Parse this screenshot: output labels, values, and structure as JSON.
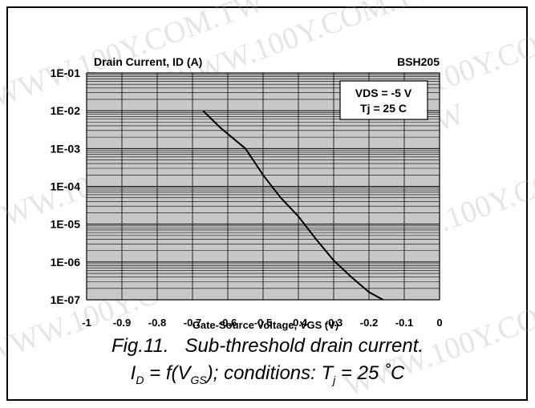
{
  "watermark": "WWW.100Y.COM.TW",
  "caption": {
    "fig_label": "Fig.11.",
    "fig_title": "Sub-threshold drain current.",
    "formula_I": "I",
    "formula_D": "D",
    "formula_mid": " = f(V",
    "formula_GS": "GS",
    "formula_cond": "); conditions: T",
    "formula_j": "j",
    "formula_end": " = 25 ˚C"
  },
  "chart_data": {
    "type": "line",
    "title": "Drain Current, ID (A)",
    "part_number": "BSH205",
    "xlabel": "Gate-Source Voltage, VGS (V)",
    "ylabel": "Drain Current, ID (A)",
    "xlim": [
      -1,
      0
    ],
    "ylim": [
      1e-07,
      0.1
    ],
    "yscale": "log",
    "grid": true,
    "x_ticks": [
      "-1",
      "-0.9",
      "-0.8",
      "-0.7",
      "-0.6",
      "-0.5",
      "-0.4",
      "-0.3",
      "-0.2",
      "-0.1",
      "0"
    ],
    "y_ticks": [
      "1E-07",
      "1E-06",
      "1E-05",
      "1E-04",
      "1E-03",
      "1E-02",
      "1E-01"
    ],
    "legend_box": [
      "VDS = -5 V",
      "Tj = 25 C"
    ],
    "legend_placement": "top-right",
    "series": [
      {
        "x": [
          -0.67,
          -0.62,
          -0.55,
          -0.5,
          -0.45,
          -0.4,
          -0.35,
          -0.3,
          -0.25,
          -0.2,
          -0.16
        ],
        "y": [
          0.01,
          0.0035,
          0.001,
          0.0002,
          5e-05,
          1.6e-05,
          4e-06,
          1.1e-06,
          4e-07,
          1.6e-07,
          1e-07
        ]
      }
    ]
  }
}
